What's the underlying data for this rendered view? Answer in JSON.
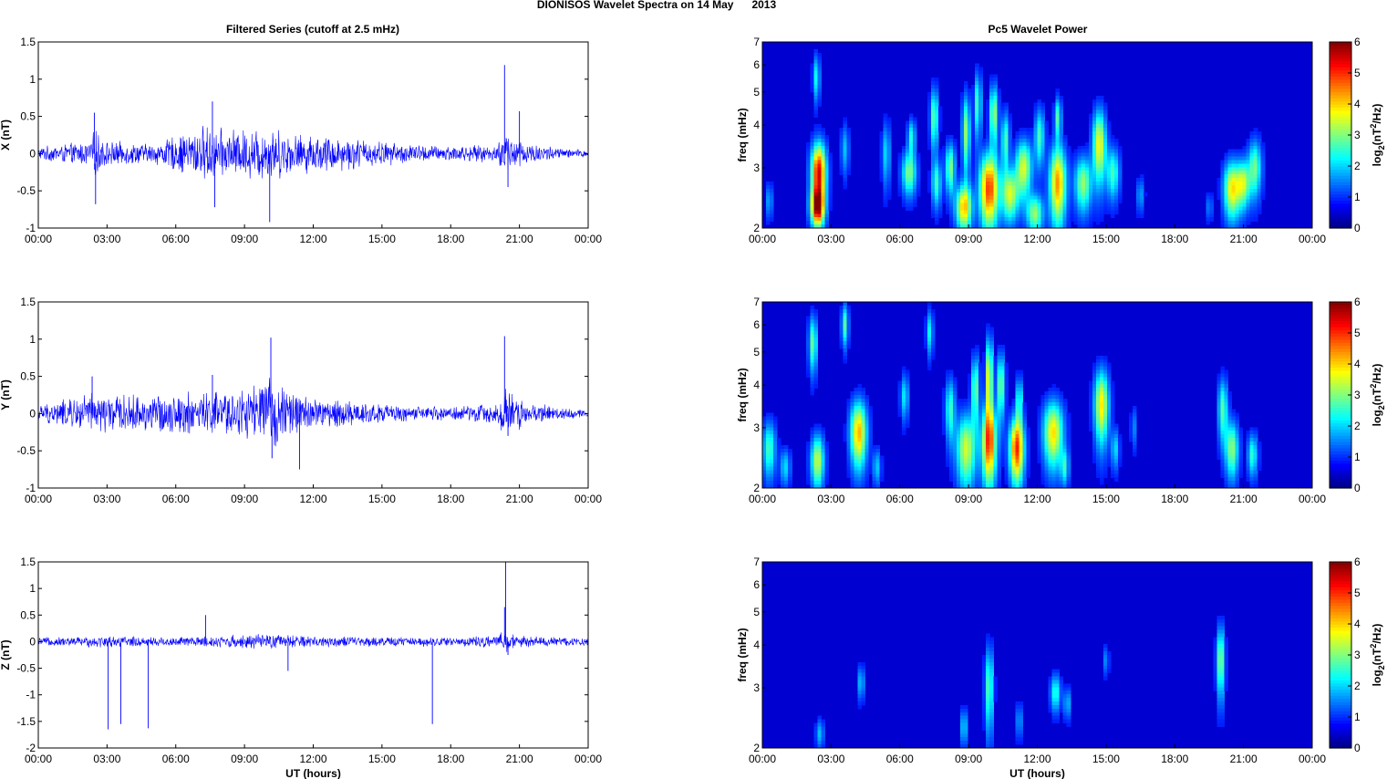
{
  "figure": {
    "suptitle": "DIONISOS Wavelet Spectra on 14 May      2013",
    "left_title": "Filtered Series (cutoff at 2.5 mHz)",
    "right_title": "Pc5 Wavelet Power"
  },
  "chart_data": [
    {
      "type": "line",
      "panel": "X",
      "ylabel": "X (nT)",
      "xlabel": "",
      "xlim": [
        0,
        24
      ],
      "ylim": [
        -1,
        1.5
      ],
      "yticks": [
        "-1",
        "-0.5",
        "0",
        "0.5",
        "1",
        "1.5"
      ],
      "xticks": [
        "00:00",
        "03:00",
        "06:00",
        "09:00",
        "12:00",
        "15:00",
        "18:00",
        "21:00",
        "00:00"
      ],
      "color": "#0000ff",
      "amplitude_envelope": [
        [
          0,
          0.08
        ],
        [
          2.2,
          0.15
        ],
        [
          2.5,
          0.3
        ],
        [
          3,
          0.15
        ],
        [
          5,
          0.12
        ],
        [
          7.3,
          0.35
        ],
        [
          8,
          0.3
        ],
        [
          9,
          0.3
        ],
        [
          10,
          0.35
        ],
        [
          11,
          0.25
        ],
        [
          13,
          0.22
        ],
        [
          15,
          0.15
        ],
        [
          17,
          0.1
        ],
        [
          20,
          0.1
        ],
        [
          20.4,
          0.3
        ],
        [
          21.2,
          0.15
        ],
        [
          23,
          0.06
        ],
        [
          24,
          0.05
        ]
      ],
      "spikes": [
        [
          2.5,
          -0.68
        ],
        [
          2.45,
          0.55
        ],
        [
          7.6,
          0.7
        ],
        [
          7.7,
          -0.72
        ],
        [
          10.1,
          -0.92
        ],
        [
          20.35,
          1.19
        ],
        [
          21.0,
          0.57
        ],
        [
          20.5,
          -0.45
        ]
      ]
    },
    {
      "type": "line",
      "panel": "Y",
      "ylabel": "Y (nT)",
      "xlabel": "",
      "xlim": [
        0,
        24
      ],
      "ylim": [
        -1,
        1.5
      ],
      "yticks": [
        "-1",
        "-0.5",
        "0",
        "0.5",
        "1",
        "1.5"
      ],
      "xticks": [
        "00:00",
        "03:00",
        "06:00",
        "09:00",
        "12:00",
        "15:00",
        "18:00",
        "21:00",
        "00:00"
      ],
      "color": "#0000ff",
      "amplitude_envelope": [
        [
          0,
          0.1
        ],
        [
          2.3,
          0.25
        ],
        [
          4,
          0.22
        ],
        [
          7.5,
          0.28
        ],
        [
          9,
          0.3
        ],
        [
          10,
          0.45
        ],
        [
          11,
          0.3
        ],
        [
          12,
          0.2
        ],
        [
          15,
          0.12
        ],
        [
          17,
          0.08
        ],
        [
          20,
          0.12
        ],
        [
          20.4,
          0.35
        ],
        [
          21.2,
          0.15
        ],
        [
          23,
          0.07
        ],
        [
          24,
          0.05
        ]
      ],
      "spikes": [
        [
          10.15,
          1.02
        ],
        [
          10.2,
          -0.6
        ],
        [
          11.4,
          -0.75
        ],
        [
          2.35,
          0.5
        ],
        [
          20.35,
          1.04
        ],
        [
          20.5,
          -0.3
        ],
        [
          7.6,
          0.52
        ]
      ]
    },
    {
      "type": "line",
      "panel": "Z",
      "ylabel": "Z (nT)",
      "xlabel": "UT (hours)",
      "xlim": [
        0,
        24
      ],
      "ylim": [
        -2,
        1.5
      ],
      "yticks": [
        "-2",
        "-1.5",
        "-1",
        "-0.5",
        "0",
        "0.5",
        "1",
        "1.5"
      ],
      "xticks": [
        "00:00",
        "03:00",
        "06:00",
        "09:00",
        "12:00",
        "15:00",
        "18:00",
        "21:00",
        "00:00"
      ],
      "color": "#0000ff",
      "amplitude_envelope": [
        [
          0,
          0.07
        ],
        [
          3,
          0.1
        ],
        [
          6,
          0.08
        ],
        [
          9,
          0.12
        ],
        [
          10,
          0.13
        ],
        [
          12,
          0.1
        ],
        [
          15,
          0.08
        ],
        [
          18,
          0.08
        ],
        [
          20,
          0.1
        ],
        [
          20.4,
          0.2
        ],
        [
          21,
          0.1
        ],
        [
          24,
          0.07
        ]
      ],
      "spikes": [
        [
          3.05,
          -1.65
        ],
        [
          3.6,
          -1.55
        ],
        [
          4.8,
          -1.63
        ],
        [
          17.2,
          -1.55
        ],
        [
          7.3,
          0.5
        ],
        [
          10.9,
          -0.55
        ],
        [
          20.35,
          0.65
        ],
        [
          20.4,
          1.5
        ],
        [
          20.5,
          -0.25
        ]
      ]
    },
    {
      "type": "heatmap",
      "panel": "X",
      "ylabel": "freq (mHz)",
      "xlabel": "",
      "xlim": [
        0,
        24
      ],
      "ylim": [
        2,
        7
      ],
      "yscale": "log",
      "yticks": [
        "2",
        "3",
        "4",
        "5",
        "6",
        "7"
      ],
      "xticks": [
        "00:00",
        "03:00",
        "06:00",
        "09:00",
        "12:00",
        "15:00",
        "18:00",
        "21:00",
        "00:00"
      ],
      "colorbar": {
        "label": "log2(nT^2/Hz)",
        "range": [
          0,
          6
        ],
        "ticks": [
          "0",
          "1",
          "2",
          "3",
          "4",
          "5",
          "6"
        ],
        "colormap": "jet"
      },
      "blobs": [
        [
          2.45,
          2.9,
          0.22,
          0.42,
          5.2
        ],
        [
          2.4,
          2.3,
          0.2,
          0.2,
          4.7
        ],
        [
          2.35,
          5.5,
          0.1,
          0.6,
          1.8
        ],
        [
          0.3,
          2.4,
          0.1,
          0.2,
          1.2
        ],
        [
          3.6,
          3.4,
          0.12,
          0.4,
          1.3
        ],
        [
          5.4,
          3.3,
          0.12,
          0.5,
          1.5
        ],
        [
          6.4,
          2.9,
          0.22,
          0.3,
          2.5
        ],
        [
          6.5,
          3.7,
          0.12,
          0.3,
          1.8
        ],
        [
          7.5,
          4.2,
          0.12,
          0.6,
          2.4
        ],
        [
          7.6,
          2.7,
          0.15,
          0.3,
          2.0
        ],
        [
          8.2,
          3.0,
          0.15,
          0.35,
          2.5
        ],
        [
          8.8,
          2.3,
          0.25,
          0.25,
          3.6
        ],
        [
          8.9,
          3.8,
          0.12,
          0.7,
          2.6
        ],
        [
          9.4,
          4.6,
          0.1,
          0.7,
          2.2
        ],
        [
          9.9,
          2.6,
          0.28,
          0.45,
          4.6
        ],
        [
          10.1,
          4.3,
          0.12,
          0.6,
          2.8
        ],
        [
          10.8,
          2.5,
          0.25,
          0.3,
          3.0
        ],
        [
          10.6,
          3.6,
          0.12,
          0.5,
          2.2
        ],
        [
          11.4,
          3.0,
          0.25,
          0.4,
          3.1
        ],
        [
          11.9,
          2.2,
          0.25,
          0.2,
          2.6
        ],
        [
          12.1,
          3.7,
          0.15,
          0.5,
          2.1
        ],
        [
          12.9,
          2.7,
          0.25,
          0.5,
          4.0
        ],
        [
          12.9,
          4.2,
          0.1,
          0.4,
          2.2
        ],
        [
          14.0,
          2.7,
          0.25,
          0.35,
          2.6
        ],
        [
          14.7,
          3.5,
          0.2,
          0.6,
          3.3
        ],
        [
          15.3,
          2.9,
          0.2,
          0.35,
          2.1
        ],
        [
          16.5,
          2.5,
          0.12,
          0.2,
          1.1
        ],
        [
          20.5,
          2.6,
          0.25,
          0.35,
          3.4
        ],
        [
          21.0,
          2.7,
          0.2,
          0.3,
          2.7
        ],
        [
          21.5,
          3.0,
          0.2,
          0.4,
          2.4
        ],
        [
          19.5,
          2.3,
          0.1,
          0.15,
          0.9
        ]
      ]
    },
    {
      "type": "heatmap",
      "panel": "Y",
      "ylabel": "freq (mHz)",
      "xlabel": "",
      "xlim": [
        0,
        24
      ],
      "ylim": [
        2,
        7
      ],
      "yscale": "log",
      "yticks": [
        "2",
        "3",
        "4",
        "5",
        "6",
        "7"
      ],
      "xticks": [
        "00:00",
        "03:00",
        "06:00",
        "09:00",
        "12:00",
        "15:00",
        "18:00",
        "21:00",
        "00:00"
      ],
      "colorbar": {
        "label": "log2(nT^2/Hz)",
        "range": [
          0,
          6
        ],
        "ticks": [
          "0",
          "1",
          "2",
          "3",
          "4",
          "5",
          "6"
        ],
        "colormap": "jet"
      },
      "blobs": [
        [
          0.3,
          2.6,
          0.2,
          0.35,
          2.1
        ],
        [
          1.0,
          2.3,
          0.15,
          0.2,
          1.5
        ],
        [
          2.4,
          2.4,
          0.2,
          0.3,
          3.0
        ],
        [
          2.2,
          5.3,
          0.12,
          0.7,
          2.4
        ],
        [
          3.6,
          6.0,
          0.1,
          0.6,
          2.2
        ],
        [
          4.2,
          2.9,
          0.25,
          0.45,
          3.8
        ],
        [
          5.0,
          2.3,
          0.12,
          0.2,
          1.4
        ],
        [
          6.2,
          3.7,
          0.12,
          0.4,
          1.6
        ],
        [
          7.3,
          5.7,
          0.1,
          0.6,
          1.7
        ],
        [
          8.2,
          3.4,
          0.15,
          0.5,
          2.0
        ],
        [
          8.9,
          2.6,
          0.3,
          0.45,
          3.0
        ],
        [
          9.3,
          3.9,
          0.12,
          0.6,
          2.5
        ],
        [
          9.9,
          2.7,
          0.22,
          0.5,
          4.3
        ],
        [
          9.9,
          4.2,
          0.1,
          0.8,
          3.5
        ],
        [
          10.4,
          4.0,
          0.12,
          0.6,
          2.6
        ],
        [
          11.1,
          2.6,
          0.22,
          0.4,
          4.7
        ],
        [
          11.2,
          3.6,
          0.1,
          0.4,
          2.0
        ],
        [
          12.7,
          2.9,
          0.3,
          0.45,
          3.5
        ],
        [
          13.2,
          2.3,
          0.12,
          0.2,
          1.7
        ],
        [
          14.8,
          3.5,
          0.22,
          0.6,
          3.4
        ],
        [
          15.4,
          2.6,
          0.12,
          0.25,
          1.5
        ],
        [
          16.2,
          3.0,
          0.08,
          0.3,
          1.0
        ],
        [
          20.1,
          3.4,
          0.15,
          0.5,
          2.2
        ],
        [
          20.5,
          2.6,
          0.2,
          0.35,
          2.6
        ],
        [
          21.4,
          2.5,
          0.15,
          0.25,
          2.0
        ]
      ]
    },
    {
      "type": "heatmap",
      "panel": "Z",
      "ylabel": "freq (mHz)",
      "xlabel": "UT (hours)",
      "xlim": [
        0,
        24
      ],
      "ylim": [
        2,
        7
      ],
      "yscale": "log",
      "yticks": [
        "2",
        "3",
        "4",
        "5",
        "6",
        "7"
      ],
      "xticks": [
        "00:00",
        "03:00",
        "06:00",
        "09:00",
        "12:00",
        "15:00",
        "18:00",
        "21:00",
        "00:00"
      ],
      "colorbar": {
        "label": "log2(nT^2/Hz)",
        "range": [
          0,
          6
        ],
        "ticks": [
          "0",
          "1",
          "2",
          "3",
          "4",
          "5",
          "6"
        ],
        "colormap": "jet"
      },
      "blobs": [
        [
          2.5,
          2.2,
          0.12,
          0.15,
          1.3
        ],
        [
          4.3,
          3.1,
          0.1,
          0.25,
          1.4
        ],
        [
          8.8,
          2.3,
          0.12,
          0.2,
          1.4
        ],
        [
          9.9,
          3.0,
          0.12,
          0.6,
          2.3
        ],
        [
          11.2,
          2.4,
          0.1,
          0.2,
          1.1
        ],
        [
          12.8,
          2.9,
          0.15,
          0.25,
          2.0
        ],
        [
          13.3,
          2.7,
          0.1,
          0.2,
          1.3
        ],
        [
          15.0,
          3.6,
          0.08,
          0.25,
          1.0
        ],
        [
          20.0,
          3.6,
          0.12,
          0.6,
          2.7
        ]
      ]
    }
  ]
}
